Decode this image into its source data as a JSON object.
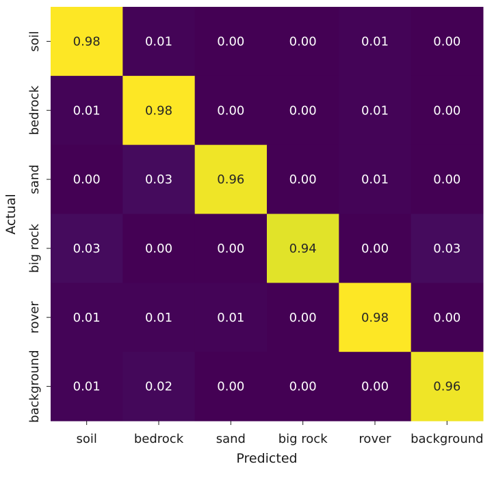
{
  "chart_data": {
    "type": "heatmap",
    "title": "",
    "xlabel": "Predicted",
    "ylabel": "Actual",
    "x_categories": [
      "soil",
      "bedrock",
      "sand",
      "big rock",
      "rover",
      "background"
    ],
    "y_categories": [
      "soil",
      "bedrock",
      "sand",
      "big rock",
      "rover",
      "background"
    ],
    "values": [
      [
        0.98,
        0.01,
        0.0,
        0.0,
        0.01,
        0.0
      ],
      [
        0.01,
        0.98,
        0.0,
        0.0,
        0.01,
        0.0
      ],
      [
        0.0,
        0.03,
        0.96,
        0.0,
        0.01,
        0.0
      ],
      [
        0.03,
        0.0,
        0.0,
        0.94,
        0.0,
        0.03
      ],
      [
        0.01,
        0.01,
        0.01,
        0.0,
        0.98,
        0.0
      ],
      [
        0.01,
        0.02,
        0.0,
        0.0,
        0.0,
        0.96
      ]
    ],
    "value_format": "0.00",
    "colormap": "viridis",
    "colorbar": false,
    "grid": false,
    "colors": {
      "low": "#440154",
      "high": "#fde725",
      "text_on_dark": "#ffffff",
      "text_on_light": "#262626"
    }
  }
}
